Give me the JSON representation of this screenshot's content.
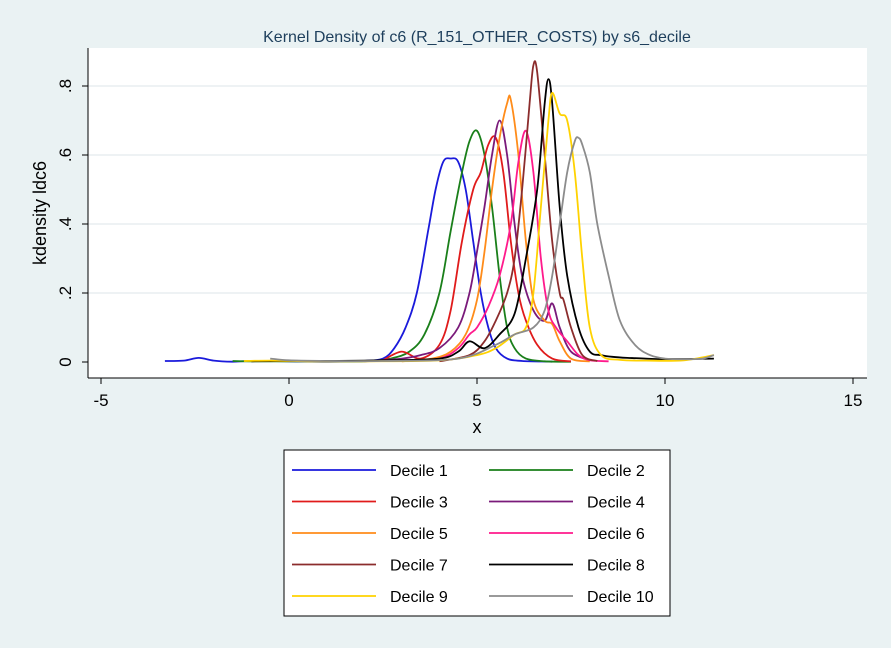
{
  "chart_data": {
    "type": "line",
    "title": "Kernel Density of c6 (R_151_OTHER_COSTS) by s6_decile",
    "xlabel": "x",
    "ylabel": "kdensity ldc6",
    "xlim": [
      -5,
      15
    ],
    "ylim": [
      0,
      0.8
    ],
    "xticks": [
      -5,
      0,
      5,
      10,
      15
    ],
    "xtick_labels": [
      "-5",
      "0",
      "5",
      "10",
      "15"
    ],
    "yticks": [
      0,
      0.2,
      0.4,
      0.6,
      0.8
    ],
    "ytick_labels": [
      "0",
      ".2",
      ".4",
      ".6",
      ".8"
    ],
    "grid": true,
    "legend_position": "bottom",
    "background": "#eaf2f3",
    "plot_background": "#ffffff",
    "series": [
      {
        "name": "Decile 1",
        "color": "#1a1adb",
        "x": [
          -3.3,
          -2.8,
          -2.4,
          -2.0,
          -1.5,
          -1.0,
          0.0,
          1.0,
          2.0,
          2.5,
          2.8,
          3.1,
          3.4,
          3.7,
          3.9,
          4.1,
          4.3,
          4.5,
          4.7,
          4.9,
          5.1,
          5.3,
          5.5,
          5.8,
          6.2,
          7.0
        ],
        "y": [
          0.003,
          0.004,
          0.012,
          0.004,
          0.001,
          0.003,
          0.002,
          0.001,
          0.003,
          0.01,
          0.04,
          0.1,
          0.2,
          0.38,
          0.5,
          0.58,
          0.59,
          0.58,
          0.5,
          0.35,
          0.2,
          0.1,
          0.04,
          0.01,
          0.003,
          0.001
        ]
      },
      {
        "name": "Decile 2",
        "color": "#1a7f1a",
        "x": [
          -1.5,
          -1.0,
          0.0,
          1.0,
          2.0,
          2.7,
          3.2,
          3.6,
          4.0,
          4.3,
          4.6,
          4.8,
          5.0,
          5.2,
          5.4,
          5.6,
          5.8,
          6.0,
          6.3,
          6.8,
          7.5
        ],
        "y": [
          0.003,
          0.002,
          0.002,
          0.002,
          0.002,
          0.01,
          0.03,
          0.08,
          0.2,
          0.38,
          0.55,
          0.64,
          0.67,
          0.6,
          0.45,
          0.25,
          0.1,
          0.04,
          0.01,
          0.002,
          0.001
        ]
      },
      {
        "name": "Decile 3",
        "color": "#e01b1b",
        "x": [
          2.5,
          3.0,
          3.5,
          4.0,
          4.3,
          4.6,
          4.9,
          5.1,
          5.3,
          5.5,
          5.7,
          5.9,
          6.1,
          6.3,
          6.6,
          7.0,
          7.5
        ],
        "y": [
          0.005,
          0.03,
          0.01,
          0.05,
          0.15,
          0.35,
          0.5,
          0.55,
          0.63,
          0.65,
          0.55,
          0.35,
          0.2,
          0.12,
          0.05,
          0.01,
          0.002
        ]
      },
      {
        "name": "Decile 4",
        "color": "#7a1a7a",
        "x": [
          2.0,
          3.0,
          3.5,
          4.0,
          4.5,
          4.8,
          5.0,
          5.2,
          5.4,
          5.6,
          5.8,
          6.0,
          6.2,
          6.5,
          6.8,
          7.0,
          7.2,
          7.5,
          8.0
        ],
        "y": [
          0.002,
          0.01,
          0.02,
          0.04,
          0.1,
          0.2,
          0.32,
          0.45,
          0.6,
          0.7,
          0.6,
          0.4,
          0.25,
          0.15,
          0.12,
          0.17,
          0.1,
          0.03,
          0.005
        ]
      },
      {
        "name": "Decile 5",
        "color": "#ff8c1a",
        "x": [
          3.0,
          3.8,
          4.3,
          4.7,
          5.0,
          5.2,
          5.4,
          5.6,
          5.8,
          5.9,
          6.1,
          6.3,
          6.5,
          6.8,
          7.0,
          7.2,
          7.5,
          8.0
        ],
        "y": [
          0.002,
          0.01,
          0.03,
          0.08,
          0.18,
          0.32,
          0.5,
          0.65,
          0.75,
          0.76,
          0.6,
          0.35,
          0.18,
          0.12,
          0.11,
          0.06,
          0.01,
          0.002
        ]
      },
      {
        "name": "Decile 6",
        "color": "#ff1a8c",
        "x": [
          3.0,
          4.0,
          4.5,
          4.8,
          5.0,
          5.3,
          5.6,
          5.9,
          6.1,
          6.3,
          6.5,
          6.7,
          6.9,
          7.1,
          7.4,
          7.7,
          8.0,
          8.5
        ],
        "y": [
          0.003,
          0.01,
          0.04,
          0.08,
          0.1,
          0.16,
          0.25,
          0.4,
          0.58,
          0.67,
          0.55,
          0.3,
          0.15,
          0.1,
          0.06,
          0.02,
          0.005,
          0.002
        ]
      },
      {
        "name": "Decile 7",
        "color": "#8b2c2c",
        "x": [
          4.0,
          4.8,
          5.2,
          5.5,
          5.8,
          6.0,
          6.2,
          6.4,
          6.5,
          6.6,
          6.8,
          7.0,
          7.2,
          7.3,
          7.5,
          7.8,
          8.2
        ],
        "y": [
          0.002,
          0.02,
          0.06,
          0.12,
          0.2,
          0.3,
          0.5,
          0.75,
          0.86,
          0.84,
          0.6,
          0.35,
          0.2,
          0.18,
          0.1,
          0.02,
          0.003
        ]
      },
      {
        "name": "Decile 8",
        "color": "#000000",
        "x": [
          -1.0,
          0.0,
          1.0,
          2.5,
          4.0,
          4.5,
          4.8,
          5.2,
          5.6,
          6.0,
          6.3,
          6.6,
          6.8,
          6.9,
          7.0,
          7.2,
          7.4,
          7.7,
          8.0,
          8.3,
          8.6,
          9.0,
          9.5,
          10.0,
          11.3
        ],
        "y": [
          0.002,
          0.003,
          0.003,
          0.005,
          0.01,
          0.03,
          0.06,
          0.04,
          0.08,
          0.14,
          0.3,
          0.5,
          0.75,
          0.82,
          0.75,
          0.45,
          0.25,
          0.1,
          0.03,
          0.02,
          0.015,
          0.012,
          0.01,
          0.008,
          0.01
        ]
      },
      {
        "name": "Decile 9",
        "color": "#ffd200",
        "x": [
          -1.2,
          -0.5,
          0.5,
          2.0,
          4.0,
          5.0,
          5.5,
          6.0,
          6.3,
          6.5,
          6.7,
          6.9,
          7.0,
          7.2,
          7.4,
          7.6,
          7.8,
          8.0,
          8.3,
          8.8,
          9.5,
          10.5,
          11.3
        ],
        "y": [
          0.003,
          0.004,
          0.002,
          0.002,
          0.005,
          0.02,
          0.04,
          0.08,
          0.1,
          0.2,
          0.45,
          0.7,
          0.78,
          0.72,
          0.7,
          0.55,
          0.3,
          0.1,
          0.02,
          0.006,
          0.004,
          0.005,
          0.02
        ]
      },
      {
        "name": "Decile 10",
        "color": "#8c8c8c",
        "x": [
          -0.5,
          0.0,
          1.0,
          2.5,
          4.5,
          5.5,
          6.0,
          6.5,
          6.8,
          7.0,
          7.2,
          7.4,
          7.6,
          7.7,
          7.8,
          8.0,
          8.2,
          8.5,
          8.8,
          9.2,
          9.6,
          10.0,
          10.5,
          11.0,
          11.3
        ],
        "y": [
          0.01,
          0.005,
          0.003,
          0.003,
          0.01,
          0.05,
          0.08,
          0.1,
          0.15,
          0.25,
          0.4,
          0.55,
          0.64,
          0.65,
          0.63,
          0.55,
          0.4,
          0.25,
          0.12,
          0.05,
          0.02,
          0.01,
          0.008,
          0.01,
          0.02
        ]
      }
    ]
  }
}
